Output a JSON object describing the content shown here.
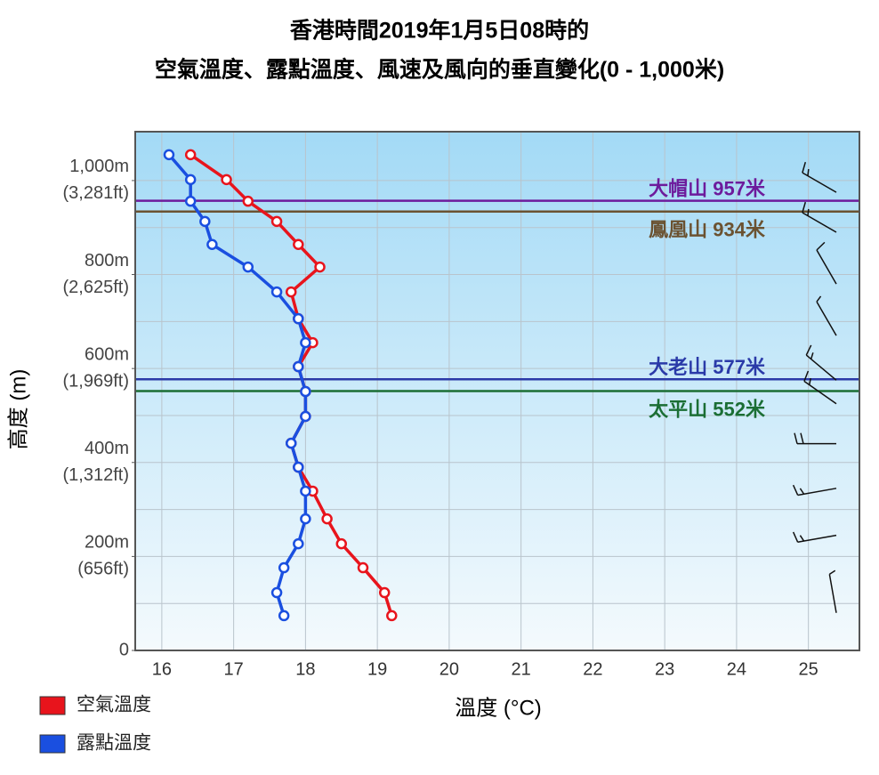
{
  "chart_data": {
    "type": "line",
    "title": [
      "香港時間2019年1月5日08時的",
      "空氣溫度、露點溫度、風速及風向的垂直變化(0 - 1,000米)"
    ],
    "x_label": "溫度 (°C)",
    "y_label": "高度 (m)",
    "xlim": [
      15.63,
      25.71
    ],
    "xticks": [
      16,
      17,
      18,
      19,
      20,
      21,
      22,
      23,
      24,
      25
    ],
    "ylim": [
      0,
      1104
    ],
    "yticks": [
      0,
      {
        "value": 200,
        "label": "200m"
      },
      {
        "value": 400,
        "label": "400m"
      },
      {
        "value": 600,
        "label": "600m"
      },
      {
        "value": 800,
        "label": "800m"
      },
      {
        "value": 1000,
        "label": "1,000m"
      }
    ],
    "ytick_feet_labels": [
      null,
      "(656ft)",
      "(1,312ft)",
      "(1,969ft)",
      "(2,625ft)",
      "(3,281ft)"
    ],
    "ygrid": [
      100,
      200,
      300,
      400,
      500,
      600,
      700,
      800,
      900,
      1000
    ],
    "grid": true,
    "series": [
      {
        "name": "空氣溫度",
        "color": "#e8141c",
        "values": [
          19.2,
          19.1,
          18.8,
          18.5,
          18.3,
          18.1,
          17.9,
          17.8,
          18.0,
          18.0,
          17.9,
          18.1,
          17.9,
          17.8,
          18.2,
          17.9,
          17.6,
          17.2,
          16.9,
          16.4
        ],
        "heights": [
          74,
          123,
          176,
          227,
          280,
          339,
          390,
          441,
          498,
          551,
          604,
          655,
          706,
          763,
          816,
          864,
          913,
          956,
          1002,
          1055
        ]
      },
      {
        "name": "露點溫度",
        "color": "#1a4fe0",
        "values": [
          17.7,
          17.6,
          17.7,
          17.9,
          18.0,
          18.0,
          17.9,
          17.8,
          18.0,
          18.0,
          17.9,
          18.0,
          17.9,
          17.6,
          17.2,
          16.7,
          16.6,
          16.4,
          16.4,
          16.1
        ],
        "heights": [
          74,
          123,
          176,
          227,
          280,
          339,
          390,
          441,
          498,
          551,
          604,
          655,
          706,
          763,
          816,
          864,
          913,
          956,
          1002,
          1055
        ]
      }
    ],
    "mountains": [
      {
        "label": "大帽山 957米",
        "height": 957,
        "color": "#6d1b9c"
      },
      {
        "label": "鳳凰山 934米",
        "height": 934,
        "color": "#6b5231"
      },
      {
        "label": "大老山 577米",
        "height": 577,
        "color": "#2a3aa8"
      },
      {
        "label": "太平山 552米",
        "height": 552,
        "color": "#1b6e34"
      }
    ],
    "wind": {
      "heights": [
        975,
        890,
        780,
        670,
        575,
        525,
        440,
        345,
        245,
        80
      ],
      "directions": [
        300,
        300,
        330,
        330,
        310,
        305,
        270,
        260,
        260,
        350
      ],
      "speeds": [
        15,
        15,
        10,
        5,
        15,
        15,
        20,
        15,
        15,
        5
      ]
    }
  }
}
